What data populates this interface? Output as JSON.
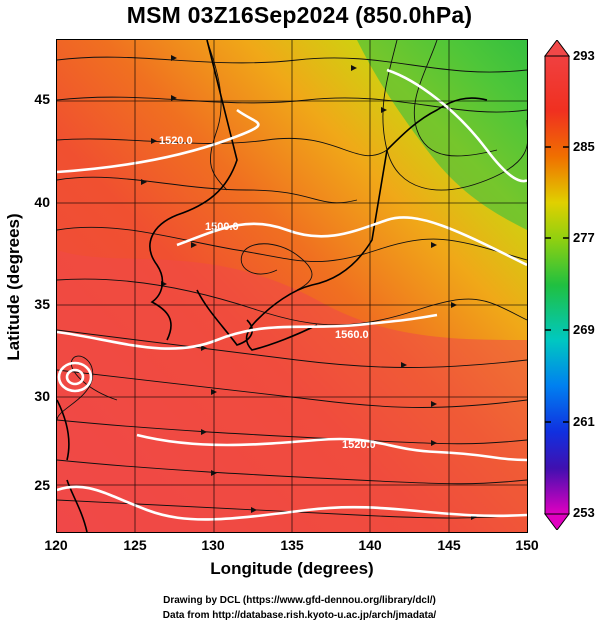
{
  "title": "MSM 03Z16Sep2024 (850.0hPa)",
  "map": {
    "xlabel": "Longitude (degrees)",
    "ylabel": "Latitude  (degrees)",
    "lon_range": [
      120,
      150
    ],
    "lat_range": [
      22.5,
      47.9
    ],
    "xticks": [
      "120",
      "125",
      "130",
      "135",
      "140",
      "145",
      "150"
    ],
    "yticks": [
      "25",
      "30",
      "35",
      "40",
      "45"
    ],
    "grid": true,
    "field": "temperature (shaded)",
    "contour_labels": [
      "1520.0",
      "1500.0",
      "1560.0",
      "1520.0"
    ]
  },
  "colorbar": {
    "ticks": [
      "293",
      "285",
      "277",
      "269",
      "261",
      "253"
    ],
    "min": 253,
    "max": 293,
    "colors": [
      "#e000c0",
      "#a000d0",
      "#3020c0",
      "#1040f0",
      "#00a0f0",
      "#00d0c0",
      "#10c040",
      "#40d020",
      "#a0d800",
      "#e0d000",
      "#f0a000",
      "#f06000",
      "#f03020",
      "#f04040"
    ]
  },
  "credits": {
    "line1": "Drawing by DCL (https://www.gfd-dennou.org/library/dcl/)",
    "line2": "Data from http://database.rish.kyoto-u.ac.jp/arch/jmadata/"
  }
}
